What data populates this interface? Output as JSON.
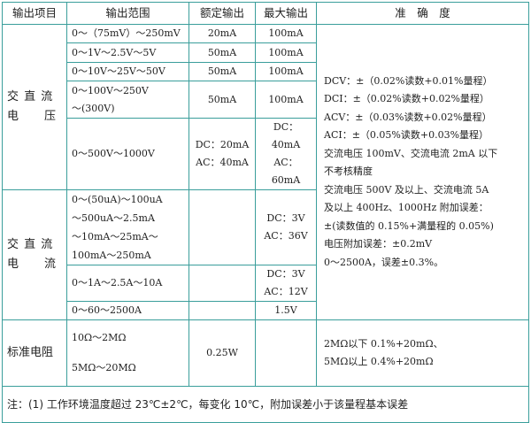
{
  "header": [
    "输出项目",
    "输出范围",
    "额定输出",
    "最大输出",
    "准　确　度"
  ],
  "voltage": {
    "category": [
      "交 直 流",
      "电　　压"
    ],
    "rows": [
      {
        "range": [
          "0～（75mV）～250mV"
        ],
        "rated": [
          "20mA"
        ],
        "max": [
          "100mA"
        ]
      },
      {
        "range": [
          "0～1V～2.5V～5V"
        ],
        "rated": [
          "50mA"
        ],
        "max": [
          "100mA"
        ]
      },
      {
        "range": [
          "0～10V～25V～50V"
        ],
        "rated": [
          "50mA"
        ],
        "max": [
          "100mA"
        ]
      },
      {
        "range": [
          "0～100V～250V",
          "～(300V)"
        ],
        "rated": [
          "50mA"
        ],
        "max": [
          "100mA"
        ]
      },
      {
        "range": [
          "0～500V～1000V"
        ],
        "rated": [
          "DC：20mA",
          "AC：40mA"
        ],
        "max": [
          "DC：40mA",
          "AC：60mA"
        ]
      }
    ]
  },
  "current": {
    "category": [
      "交 直 流",
      "电　　流"
    ],
    "rows": [
      {
        "range": [
          "0～(50uA)～100uA",
          "～500uA～2.5mA",
          "～10mA～25mA～",
          "100mA～250mA"
        ],
        "rated": [],
        "max": [
          "DC：3V",
          "AC：36V"
        ]
      },
      {
        "range": [
          "0～1A～2.5A～10A"
        ],
        "rated": [],
        "max": [
          "DC：3V",
          "AC：12V"
        ]
      },
      {
        "range": [
          "0～60～2500A"
        ],
        "rated": [],
        "max": [
          "1.5V"
        ]
      }
    ]
  },
  "accuracy": [
    "DCV：±（0.02%读数+0.01%量程）",
    "DCI：±（0.02%读数+0.02%量程）",
    "ACV：±（0.03%读数+0.02%量程）",
    "ACI：±（0.05%读数+0.03%量程）",
    "交流电压 100mV、交流电流 2mA 以下",
    "不考核精度",
    "交流电压 500V 及以上、交流电流 5A",
    "及以上 400Hz、1000Hz 附加误差：",
    "±(读数值的 0.15%+满量程的 0.05%)",
    "电压附加误差：±0.2mV",
    "0～2500A，误差±0.3%。"
  ],
  "resistor": {
    "category": "标准电阻",
    "range": [
      "10Ω～2MΩ",
      "5MΩ～20MΩ"
    ],
    "rated": "0.25W",
    "max": "",
    "accuracy": [
      "2MΩ以下 0.1%+20mΩ、",
      "5MΩ以上 0.4%+20mΩ"
    ]
  },
  "note": "注：(1) 工作环境温度超过 23℃±2℃，每变化 10℃，附加误差小于该量程基本误差"
}
